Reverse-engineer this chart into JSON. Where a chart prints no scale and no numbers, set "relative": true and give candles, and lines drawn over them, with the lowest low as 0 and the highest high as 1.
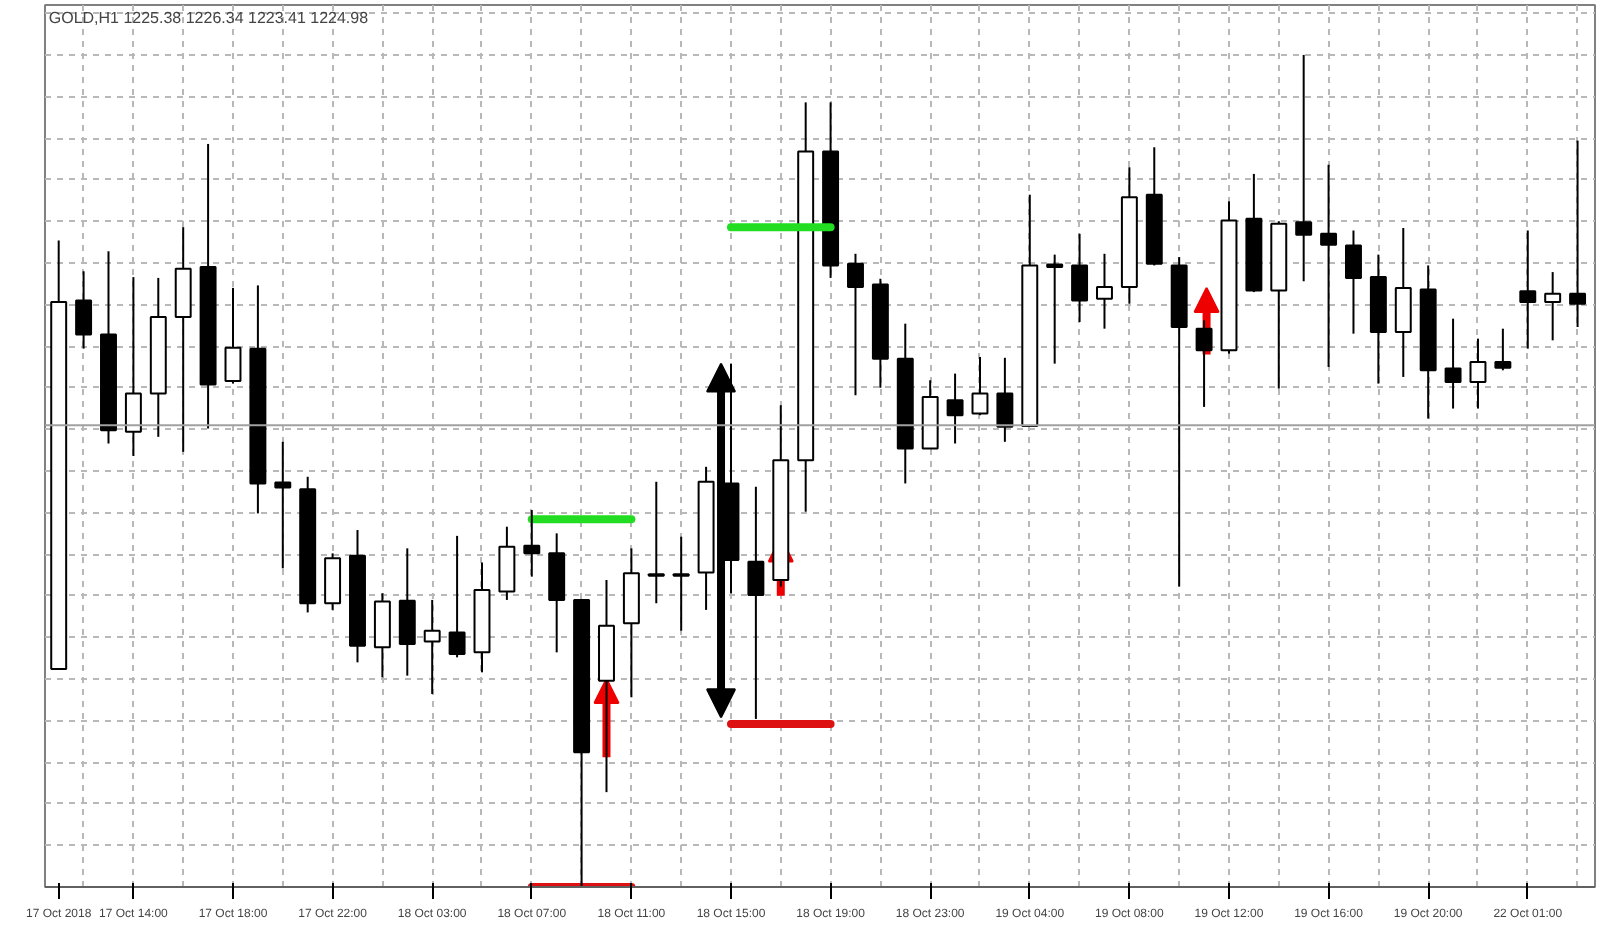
{
  "chart_data": {
    "type": "candlestick",
    "title": "GOLD,H1  1225.38 1226.34 1223.41 1224.98",
    "relative": true,
    "grid": true,
    "categories": [
      "17 Oct 2018",
      null,
      null,
      "17 Oct 14:00",
      null,
      null,
      null,
      "17 Oct 18:00",
      null,
      null,
      null,
      "17 Oct 22:00",
      null,
      null,
      null,
      "18 Oct 03:00",
      null,
      null,
      null,
      "18 Oct 07:00",
      null,
      null,
      null,
      "18 Oct 11:00",
      null,
      null,
      null,
      "18 Oct 15:00",
      null,
      null,
      null,
      "18 Oct 19:00",
      null,
      null,
      null,
      "18 Oct 23:00",
      null,
      null,
      null,
      "19 Oct 04:00",
      null,
      null,
      null,
      "19 Oct 08:00",
      null,
      null,
      null,
      "19 Oct 12:00",
      null,
      null,
      null,
      "19 Oct 16:00",
      null,
      null,
      null,
      "19 Oct 20:00",
      null,
      null,
      null,
      "22 Oct 01:00",
      null,
      null
    ],
    "ohlc": [
      [
        0.262,
        0.777,
        0.262,
        0.703
      ],
      [
        0.705,
        0.74,
        0.647,
        0.664
      ],
      [
        0.664,
        0.764,
        0.533,
        0.549
      ],
      [
        0.547,
        0.733,
        0.518,
        0.593
      ],
      [
        0.593,
        0.732,
        0.541,
        0.685
      ],
      [
        0.685,
        0.793,
        0.523,
        0.743
      ],
      [
        0.745,
        0.893,
        0.551,
        0.604
      ],
      [
        0.608,
        0.72,
        0.605,
        0.648
      ],
      [
        0.647,
        0.723,
        0.449,
        0.485
      ],
      [
        0.486,
        0.535,
        0.383,
        0.48
      ],
      [
        0.478,
        0.493,
        0.33,
        0.341
      ],
      [
        0.341,
        0.401,
        0.333,
        0.395
      ],
      [
        0.398,
        0.429,
        0.27,
        0.29
      ],
      [
        0.288,
        0.353,
        0.252,
        0.343
      ],
      [
        0.344,
        0.407,
        0.254,
        0.292
      ],
      [
        0.295,
        0.345,
        0.232,
        0.308
      ],
      [
        0.306,
        0.422,
        0.276,
        0.28
      ],
      [
        0.282,
        0.39,
        0.258,
        0.357
      ],
      [
        0.355,
        0.433,
        0.345,
        0.409
      ],
      [
        0.41,
        0.453,
        0.373,
        0.401
      ],
      [
        0.401,
        0.425,
        0.282,
        0.345
      ],
      [
        0.345,
        0.345,
        0.0,
        0.162
      ],
      [
        0.248,
        0.369,
        0.114,
        0.314
      ],
      [
        0.317,
        0.407,
        0.228,
        0.377
      ],
      [
        0.376,
        0.487,
        0.341,
        0.374
      ],
      [
        0.376,
        0.421,
        0.308,
        0.374
      ],
      [
        0.378,
        0.505,
        0.333,
        0.487
      ],
      [
        0.485,
        0.629,
        0.353,
        0.393
      ],
      [
        0.391,
        0.481,
        0.202,
        0.351
      ],
      [
        0.369,
        0.579,
        0.361,
        0.513
      ],
      [
        0.513,
        0.943,
        0.451,
        0.884
      ],
      [
        0.884,
        0.943,
        0.732,
        0.747
      ],
      [
        0.749,
        0.761,
        0.591,
        0.721
      ],
      [
        0.724,
        0.731,
        0.6,
        0.635
      ],
      [
        0.635,
        0.677,
        0.485,
        0.527
      ],
      [
        0.527,
        0.609,
        0.527,
        0.589
      ],
      [
        0.585,
        0.617,
        0.533,
        0.567
      ],
      [
        0.569,
        0.637,
        0.567,
        0.593
      ],
      [
        0.593,
        0.636,
        0.535,
        0.553
      ],
      [
        0.554,
        0.832,
        0.554,
        0.747
      ],
      [
        0.748,
        0.76,
        0.629,
        0.745
      ],
      [
        0.747,
        0.785,
        0.679,
        0.705
      ],
      [
        0.707,
        0.761,
        0.671,
        0.721
      ],
      [
        0.721,
        0.865,
        0.701,
        0.829
      ],
      [
        0.832,
        0.889,
        0.747,
        0.749
      ],
      [
        0.747,
        0.757,
        0.361,
        0.673
      ],
      [
        0.671,
        0.681,
        0.577,
        0.645
      ],
      [
        0.645,
        0.824,
        0.641,
        0.801
      ],
      [
        0.803,
        0.857,
        0.715,
        0.717
      ],
      [
        0.717,
        0.8,
        0.599,
        0.797
      ],
      [
        0.799,
        1.0,
        0.728,
        0.784
      ],
      [
        0.785,
        0.868,
        0.625,
        0.772
      ],
      [
        0.771,
        0.789,
        0.665,
        0.732
      ],
      [
        0.733,
        0.76,
        0.605,
        0.667
      ],
      [
        0.667,
        0.792,
        0.613,
        0.72
      ],
      [
        0.718,
        0.747,
        0.563,
        0.621
      ],
      [
        0.623,
        0.683,
        0.575,
        0.607
      ],
      [
        0.607,
        0.659,
        0.575,
        0.631
      ],
      [
        0.631,
        0.671,
        0.621,
        0.624
      ],
      [
        0.716,
        0.789,
        0.647,
        0.703
      ],
      [
        0.703,
        0.739,
        0.657,
        0.713
      ],
      [
        0.713,
        0.897,
        0.673,
        0.701
      ]
    ],
    "series": [
      {
        "type": "line",
        "color": "#22dd22",
        "x": [
          "18 Oct 07:00",
          "18 Oct 11:00"
        ],
        "values": [
          0.442,
          0.442
        ]
      },
      {
        "type": "line",
        "color": "#22dd22",
        "x": [
          "18 Oct 15:00",
          "18 Oct 19:00"
        ],
        "values": [
          0.793,
          0.793
        ]
      },
      {
        "type": "line",
        "color": "#dd1111",
        "x": [
          "18 Oct 07:00",
          "18 Oct 11:00"
        ],
        "values": [
          0.0,
          0.0
        ]
      },
      {
        "type": "line",
        "color": "#dd1111",
        "x": [
          "18 Oct 15:00",
          "18 Oct 19:00"
        ],
        "values": [
          0.196,
          0.196
        ]
      }
    ],
    "ref_lines": [
      {
        "axis": "y",
        "value": 0.555,
        "color": "#a0a0a0"
      }
    ]
  }
}
